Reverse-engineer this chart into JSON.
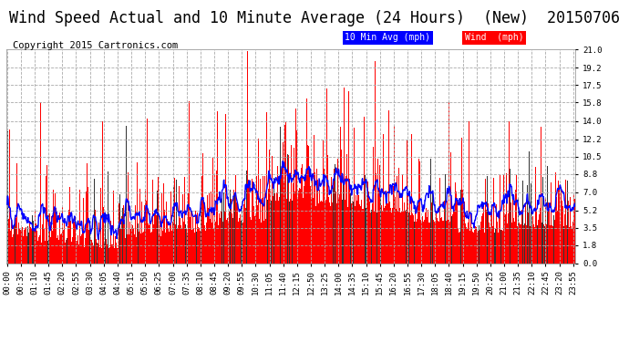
{
  "title": "Wind Speed Actual and 10 Minute Average (24 Hours)  (New)  20150706",
  "copyright": "Copyright 2015 Cartronics.com",
  "legend_label1": "10 Min Avg (mph)",
  "legend_label2": "Wind  (mph)",
  "yticks": [
    0.0,
    1.8,
    3.5,
    5.2,
    7.0,
    8.8,
    10.5,
    12.2,
    14.0,
    15.8,
    17.5,
    19.2,
    21.0
  ],
  "ylim": [
    0.0,
    21.0
  ],
  "background_color": "#ffffff",
  "plot_bg_color": "#ffffff",
  "grid_color": "#aaaaaa",
  "bar_color": "#ff0000",
  "dark_bar_color": "#333333",
  "line_color": "#0000ff",
  "title_fontsize": 12,
  "copyright_fontsize": 7.5,
  "tick_fontsize": 6.5
}
